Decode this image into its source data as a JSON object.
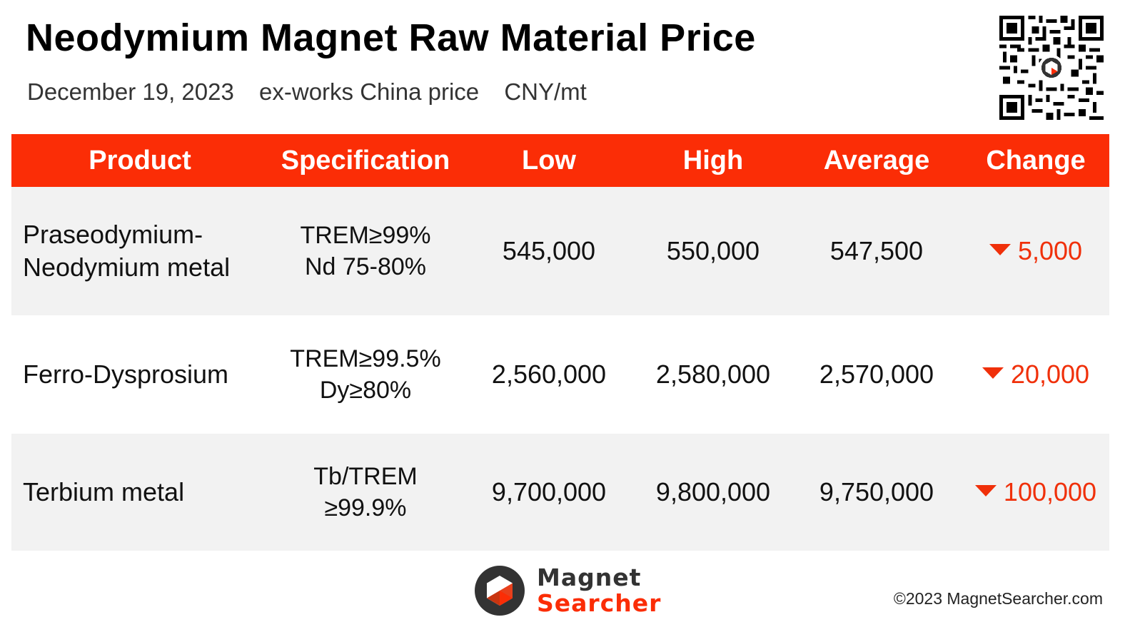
{
  "header": {
    "title": "Neodymium Magnet Raw Material Price",
    "date": "December 19, 2023",
    "basis": "ex-works China price",
    "unit": "CNY/mt"
  },
  "table": {
    "columns": [
      "Product",
      "Specification",
      "Low",
      "High",
      "Average",
      "Change"
    ],
    "rows": [
      {
        "product_line1": "Praseodymium-",
        "product_line2": "Neodymium metal",
        "spec_line1": "TREM≥99%",
        "spec_line2": "Nd 75-80%",
        "low": "545,000",
        "high": "550,000",
        "average": "547,500",
        "change": "5,000",
        "direction": "down"
      },
      {
        "product_line1": "Ferro-Dysprosium",
        "product_line2": "",
        "spec_line1": "TREM≥99.5%",
        "spec_line2": "Dy≥80%",
        "low": "2,560,000",
        "high": "2,580,000",
        "average": "2,570,000",
        "change": "20,000",
        "direction": "down"
      },
      {
        "product_line1": "Terbium metal",
        "product_line2": "",
        "spec_line1": "Tb/TREM",
        "spec_line2": "≥99.9%",
        "low": "9,700,000",
        "high": "9,800,000",
        "average": "9,750,000",
        "change": "100,000",
        "direction": "down"
      }
    ]
  },
  "footer": {
    "brand_line1": "Magnet",
    "brand_line2": "Searcher",
    "copyright": "©2023 MagnetSearcher.com"
  },
  "colors": {
    "accent": "#fb2d06",
    "change_down": "#f0300a",
    "row_alt": "#f2f2f2"
  },
  "icons": {
    "qr": "qr-code-icon",
    "logo": "magnet-searcher-logo",
    "down": "triangle-down-icon"
  }
}
